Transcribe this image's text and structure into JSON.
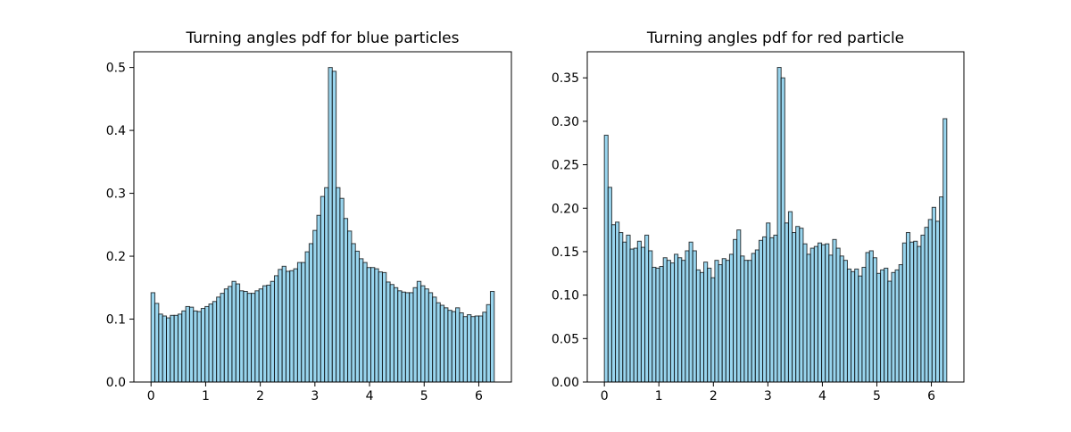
{
  "colors": {
    "bar_fill": "#87ceeb",
    "bar_edge": "#000000",
    "axes": "#000000",
    "background": "#ffffff"
  },
  "chart_data": [
    {
      "type": "bar",
      "title": "Turning angles pdf for blue particles",
      "xlabel": "",
      "ylabel": "",
      "bin_range": [
        0,
        6.283
      ],
      "xlim": [
        -0.314,
        6.597
      ],
      "ylim": [
        0,
        0.525
      ],
      "xticks": [
        "0",
        "1",
        "2",
        "3",
        "4",
        "5",
        "6"
      ],
      "yticks": [
        "0.0",
        "0.1",
        "0.2",
        "0.3",
        "0.4",
        "0.5"
      ],
      "grid": false,
      "values": [
        0.142,
        0.125,
        0.108,
        0.105,
        0.102,
        0.106,
        0.106,
        0.108,
        0.113,
        0.12,
        0.119,
        0.113,
        0.112,
        0.117,
        0.12,
        0.124,
        0.128,
        0.135,
        0.141,
        0.148,
        0.152,
        0.16,
        0.156,
        0.145,
        0.144,
        0.141,
        0.141,
        0.145,
        0.148,
        0.153,
        0.154,
        0.16,
        0.169,
        0.179,
        0.184,
        0.176,
        0.177,
        0.18,
        0.19,
        0.19,
        0.207,
        0.22,
        0.241,
        0.265,
        0.295,
        0.309,
        0.5,
        0.494,
        0.309,
        0.292,
        0.26,
        0.24,
        0.22,
        0.208,
        0.196,
        0.19,
        0.182,
        0.182,
        0.18,
        0.175,
        0.174,
        0.159,
        0.155,
        0.15,
        0.145,
        0.143,
        0.142,
        0.142,
        0.15,
        0.16,
        0.153,
        0.148,
        0.142,
        0.135,
        0.126,
        0.122,
        0.118,
        0.114,
        0.112,
        0.118,
        0.11,
        0.104,
        0.107,
        0.104,
        0.105,
        0.105,
        0.111,
        0.123,
        0.144
      ]
    },
    {
      "type": "bar",
      "title": "Turning angles pdf for red particle",
      "xlabel": "",
      "ylabel": "",
      "bin_range": [
        0,
        6.283
      ],
      "xlim": [
        -0.314,
        6.597
      ],
      "ylim": [
        0,
        0.38
      ],
      "xticks": [
        "0",
        "1",
        "2",
        "3",
        "4",
        "5",
        "6"
      ],
      "yticks": [
        "0.00",
        "0.05",
        "0.10",
        "0.15",
        "0.20",
        "0.25",
        "0.30",
        "0.35"
      ],
      "grid": false,
      "values": [
        0.284,
        0.224,
        0.181,
        0.184,
        0.172,
        0.161,
        0.169,
        0.153,
        0.154,
        0.162,
        0.155,
        0.169,
        0.151,
        0.132,
        0.131,
        0.133,
        0.143,
        0.14,
        0.137,
        0.147,
        0.143,
        0.14,
        0.151,
        0.161,
        0.151,
        0.129,
        0.126,
        0.138,
        0.131,
        0.12,
        0.14,
        0.135,
        0.142,
        0.14,
        0.147,
        0.164,
        0.175,
        0.145,
        0.14,
        0.14,
        0.148,
        0.152,
        0.163,
        0.167,
        0.183,
        0.166,
        0.169,
        0.362,
        0.35,
        0.183,
        0.196,
        0.172,
        0.179,
        0.177,
        0.159,
        0.147,
        0.154,
        0.156,
        0.16,
        0.158,
        0.159,
        0.146,
        0.164,
        0.154,
        0.145,
        0.14,
        0.13,
        0.127,
        0.13,
        0.122,
        0.132,
        0.149,
        0.151,
        0.143,
        0.125,
        0.129,
        0.131,
        0.116,
        0.126,
        0.129,
        0.135,
        0.16,
        0.172,
        0.161,
        0.162,
        0.156,
        0.169,
        0.178,
        0.187,
        0.201,
        0.185,
        0.213,
        0.303
      ]
    }
  ]
}
